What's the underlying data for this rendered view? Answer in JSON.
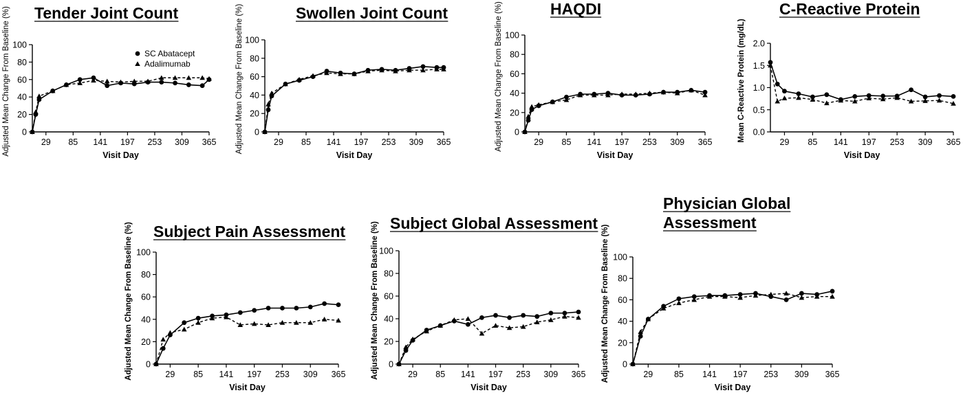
{
  "legend": {
    "series": [
      "SC Abatacept",
      "Adalimumab"
    ]
  },
  "chart_data": [
    {
      "type": "line",
      "title": "Tender Joint Count",
      "xlabel": "Visit Day",
      "ylabel": "Adjusted Mean Change From Baseline (%)",
      "ylim": [
        0,
        100
      ],
      "yticks": [
        "0",
        "20",
        "40",
        "60",
        "80",
        "100"
      ],
      "xlim": [
        1,
        365
      ],
      "xticks": [
        "29",
        "85",
        "141",
        "197",
        "253",
        "309",
        "365"
      ],
      "legend_position": "top-left",
      "series": [
        {
          "name": "SC Abatacept",
          "x": [
            1,
            8,
            15,
            43,
            71,
            99,
            127,
            155,
            183,
            211,
            239,
            267,
            295,
            323,
            351,
            365
          ],
          "y": [
            0,
            20,
            37,
            47,
            54,
            60,
            62,
            53,
            56,
            55,
            57,
            57,
            56,
            54,
            53,
            60
          ]
        },
        {
          "name": "Adalimumab",
          "x": [
            1,
            8,
            15,
            43,
            71,
            99,
            127,
            155,
            183,
            211,
            239,
            267,
            295,
            323,
            351,
            365
          ],
          "y": [
            0,
            23,
            41,
            47,
            54,
            56,
            59,
            58,
            57,
            58,
            58,
            62,
            62,
            62,
            62,
            61
          ]
        }
      ]
    },
    {
      "type": "line",
      "title": "Swollen Joint Count",
      "xlabel": "Visit Day",
      "ylabel": "Adjusted Mean Change From Baseline (%)",
      "ylim": [
        0,
        100
      ],
      "yticks": [
        "0",
        "20",
        "40",
        "60",
        "80",
        "100"
      ],
      "xlim": [
        1,
        365
      ],
      "xticks": [
        "29",
        "85",
        "141",
        "197",
        "253",
        "309",
        "365"
      ],
      "series": [
        {
          "name": "SC Abatacept",
          "x": [
            1,
            8,
            15,
            43,
            71,
            99,
            127,
            155,
            183,
            211,
            239,
            267,
            295,
            323,
            351,
            365
          ],
          "y": [
            0,
            24,
            39,
            52,
            56,
            60,
            66,
            64,
            63,
            67,
            68,
            67,
            69,
            71,
            70,
            70
          ]
        },
        {
          "name": "Adalimumab",
          "x": [
            1,
            8,
            15,
            43,
            71,
            99,
            127,
            155,
            183,
            211,
            239,
            267,
            295,
            323,
            351,
            365
          ],
          "y": [
            0,
            30,
            42,
            52,
            57,
            61,
            64,
            63,
            63,
            66,
            67,
            66,
            67,
            67,
            68,
            68
          ]
        }
      ]
    },
    {
      "type": "line",
      "title": "HAQDI",
      "xlabel": "Visit Day",
      "ylabel": "Adjusted Mean Change From Baseline (%)",
      "ylim": [
        0,
        100
      ],
      "yticks": [
        "0",
        "20",
        "40",
        "60",
        "80",
        "100"
      ],
      "xlim": [
        1,
        365
      ],
      "xticks": [
        "29",
        "85",
        "141",
        "197",
        "253",
        "309",
        "365"
      ],
      "series": [
        {
          "name": "SC Abatacept",
          "x": [
            1,
            8,
            15,
            29,
            57,
            85,
            113,
            141,
            169,
            197,
            225,
            253,
            281,
            309,
            337,
            365
          ],
          "y": [
            0,
            12,
            23,
            27,
            31,
            36,
            39,
            39,
            40,
            38,
            38,
            39,
            41,
            41,
            43,
            41
          ]
        },
        {
          "name": "Adalimumab",
          "x": [
            1,
            8,
            15,
            29,
            57,
            85,
            113,
            141,
            169,
            197,
            225,
            253,
            281,
            309,
            337,
            365
          ],
          "y": [
            0,
            16,
            26,
            28,
            31,
            33,
            38,
            38,
            38,
            39,
            39,
            40,
            41,
            40,
            43,
            38
          ]
        }
      ]
    },
    {
      "type": "line",
      "title": "C-Reactive Protein",
      "xlabel": "Visit Day",
      "ylabel": "Mean C-Reactive Protein (mg/dL)",
      "ylim": [
        0,
        2
      ],
      "yticks": [
        "0.0",
        "0.5",
        "1.0",
        "1.5",
        "2.0"
      ],
      "xlim": [
        1,
        365
      ],
      "xticks": [
        "29",
        "85",
        "141",
        "197",
        "253",
        "309",
        "365"
      ],
      "series": [
        {
          "name": "SC Abatacept",
          "x": [
            1,
            15,
            29,
            57,
            85,
            113,
            141,
            169,
            197,
            225,
            253,
            281,
            309,
            337,
            365
          ],
          "y": [
            1.57,
            1.08,
            0.92,
            0.86,
            0.79,
            0.84,
            0.73,
            0.8,
            0.82,
            0.81,
            0.81,
            0.95,
            0.79,
            0.82,
            0.8
          ]
        },
        {
          "name": "Adalimumab",
          "x": [
            1,
            15,
            29,
            57,
            85,
            113,
            141,
            169,
            197,
            225,
            253,
            281,
            309,
            337,
            365
          ],
          "y": [
            1.5,
            0.69,
            0.76,
            0.77,
            0.73,
            0.65,
            0.71,
            0.69,
            0.76,
            0.74,
            0.77,
            0.69,
            0.7,
            0.71,
            0.64
          ]
        }
      ]
    },
    {
      "type": "line",
      "title": "Subject Pain Assessment",
      "xlabel": "Visit Day",
      "ylabel": "Adjusted Mean Change From Baseline (%)",
      "ylim": [
        0,
        100
      ],
      "yticks": [
        "0",
        "20",
        "40",
        "60",
        "80",
        "100"
      ],
      "xlim": [
        1,
        365
      ],
      "xticks": [
        "29",
        "85",
        "141",
        "197",
        "253",
        "309",
        "365"
      ],
      "series": [
        {
          "name": "SC Abatacept",
          "x": [
            1,
            15,
            29,
            57,
            85,
            113,
            141,
            169,
            197,
            225,
            253,
            281,
            309,
            337,
            365
          ],
          "y": [
            0,
            14,
            26,
            37,
            41,
            43,
            44,
            46,
            48,
            50,
            50,
            50,
            51,
            54,
            53
          ]
        },
        {
          "name": "Adalimumab",
          "x": [
            1,
            15,
            29,
            57,
            85,
            113,
            141,
            169,
            197,
            225,
            253,
            281,
            309,
            337,
            365
          ],
          "y": [
            0,
            22,
            28,
            31,
            37,
            41,
            42,
            35,
            36,
            35,
            37,
            37,
            37,
            40,
            39
          ]
        }
      ]
    },
    {
      "type": "line",
      "title": "Subject Global Assessment",
      "xlabel": "Visit Day",
      "ylabel": "Adjusted Mean Change From Baseline (%)",
      "ylim": [
        0,
        100
      ],
      "yticks": [
        "0",
        "20",
        "40",
        "60",
        "80",
        "100"
      ],
      "xlim": [
        1,
        365
      ],
      "xticks": [
        "29",
        "85",
        "141",
        "197",
        "253",
        "309",
        "365"
      ],
      "series": [
        {
          "name": "SC Abatacept",
          "x": [
            1,
            15,
            29,
            57,
            85,
            113,
            141,
            169,
            197,
            225,
            253,
            281,
            309,
            337,
            365
          ],
          "y": [
            0,
            12,
            21,
            30,
            34,
            38,
            35,
            41,
            43,
            41,
            43,
            42,
            45,
            45,
            46
          ]
        },
        {
          "name": "Adalimumab",
          "x": [
            1,
            15,
            29,
            57,
            85,
            113,
            141,
            169,
            197,
            225,
            253,
            281,
            309,
            337,
            365
          ],
          "y": [
            0,
            15,
            22,
            29,
            34,
            39,
            40,
            27,
            34,
            32,
            33,
            37,
            39,
            42,
            41
          ]
        }
      ]
    },
    {
      "type": "line",
      "title": "Physician Global Assessment",
      "title_lines": [
        "Physician Global",
        "Assessment"
      ],
      "xlabel": "Visit Day",
      "ylabel": "Adjusted Mean Change From Baseline (%)",
      "ylim": [
        0,
        100
      ],
      "yticks": [
        "0",
        "20",
        "40",
        "60",
        "80",
        "100"
      ],
      "xlim": [
        1,
        365
      ],
      "xticks": [
        "29",
        "85",
        "141",
        "197",
        "253",
        "309",
        "365"
      ],
      "series": [
        {
          "name": "SC Abatacept",
          "x": [
            1,
            15,
            29,
            57,
            85,
            113,
            141,
            169,
            197,
            225,
            253,
            281,
            309,
            337,
            365
          ],
          "y": [
            0,
            26,
            42,
            54,
            61,
            63,
            64,
            64,
            65,
            66,
            63,
            60,
            66,
            65,
            68
          ]
        },
        {
          "name": "Adalimumab",
          "x": [
            1,
            15,
            29,
            57,
            85,
            113,
            141,
            169,
            197,
            225,
            253,
            281,
            309,
            337,
            365
          ],
          "y": [
            0,
            30,
            42,
            52,
            57,
            60,
            63,
            63,
            62,
            64,
            65,
            66,
            62,
            63,
            63
          ]
        }
      ]
    }
  ]
}
